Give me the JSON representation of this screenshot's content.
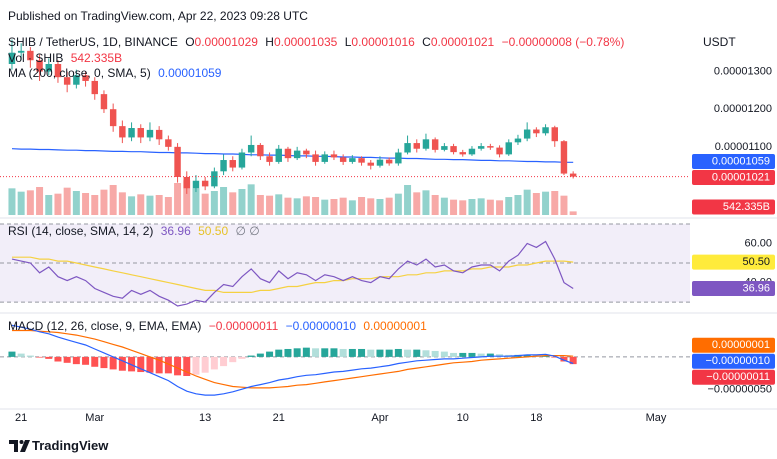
{
  "header": {
    "published": "Published on TradingView.com, Apr 22, 2023 09:28 UTC",
    "currency": "USDT",
    "symbol": "SHIB / TetherUS, 1D, BINANCE",
    "ohlc": [
      {
        "key": "O",
        "value": "0.00001029"
      },
      {
        "key": "H",
        "value": "0.00001035"
      },
      {
        "key": "L",
        "value": "0.00001016"
      },
      {
        "key": "C",
        "value": "0.00001021"
      }
    ],
    "change": "−0.00000008 (−0.78%)"
  },
  "footer": {
    "brand": "TradingView"
  },
  "xaxis": {
    "xlim": [
      -1.3,
      73.7
    ],
    "xticks": [
      {
        "value": 1,
        "label": "21"
      },
      {
        "value": 9,
        "label": "Mar"
      },
      {
        "value": 21,
        "label": "13"
      },
      {
        "value": 29,
        "label": "21"
      },
      {
        "value": 40,
        "label": "Apr"
      },
      {
        "value": 49,
        "label": "10"
      },
      {
        "value": 57,
        "label": "18"
      },
      {
        "value": 70,
        "label": "May"
      }
    ]
  },
  "chart_data": [
    {
      "type": "candlestick",
      "up_color": "#26a69a",
      "down_color": "#ef5350",
      "grid": false,
      "ylim": [
        9.19e-06,
        1.405e-05
      ],
      "yticks": [
        {
          "value": 1.3e-05,
          "label": "0.00001300"
        },
        {
          "value": 1.2e-05,
          "label": "0.00001200"
        },
        {
          "value": 1.1e-05,
          "label": "0.00001100"
        }
      ],
      "open": [
        1.32e-05,
        1.35e-05,
        1.355e-05,
        1.33e-05,
        1.3e-05,
        1.32e-05,
        1.285e-05,
        1.265e-05,
        1.29e-05,
        1.275e-05,
        1.24e-05,
        1.2e-05,
        1.155e-05,
        1.125e-05,
        1.15e-05,
        1.125e-05,
        1.145e-05,
        1.12e-05,
        1.1e-05,
        1.02e-05,
        9.9e-06,
        1.01e-05,
        9.95e-06,
        1.035e-05,
        1.065e-05,
        1.045e-05,
        1.085e-05,
        1.105e-05,
        1.075e-05,
        1.06e-05,
        1.095e-05,
        1.07e-05,
        1.09e-05,
        1.08e-05,
        1.06e-05,
        1.08e-05,
        1.072e-05,
        1.06e-05,
        1.07e-05,
        1.058e-05,
        1.05e-05,
        1.066e-05,
        1.056e-05,
        1.085e-05,
        1.11e-05,
        1.095e-05,
        1.12e-05,
        1.092e-05,
        1.102e-05,
        1.086e-05,
        1.08e-05,
        1.095e-05,
        1.102e-05,
        1.098e-05,
        1.08e-05,
        1.112e-05,
        1.122e-05,
        1.146e-05,
        1.136e-05,
        1.152e-05,
        1.115e-05,
        1.029e-05
      ],
      "high": [
        1.385e-05,
        1.375e-05,
        1.365e-05,
        1.345e-05,
        1.335e-05,
        1.33e-05,
        1.3e-05,
        1.305e-05,
        1.3e-05,
        1.285e-05,
        1.25e-05,
        1.215e-05,
        1.17e-05,
        1.165e-05,
        1.16e-05,
        1.165e-05,
        1.155e-05,
        1.13e-05,
        1.11e-05,
        1.035e-05,
        1.025e-05,
        1.02e-05,
        1.045e-05,
        1.08e-05,
        1.075e-05,
        1.095e-05,
        1.13e-05,
        1.11e-05,
        1.085e-05,
        1.105e-05,
        1.1e-05,
        1.1e-05,
        1.095e-05,
        1.09e-05,
        1.088e-05,
        1.09e-05,
        1.08e-05,
        1.078e-05,
        1.075e-05,
        1.065e-05,
        1.075e-05,
        1.072e-05,
        1.095e-05,
        1.13e-05,
        1.12e-05,
        1.135e-05,
        1.125e-05,
        1.11e-05,
        1.108e-05,
        1.092e-05,
        1.102e-05,
        1.11e-05,
        1.108e-05,
        1.104e-05,
        1.12e-05,
        1.132e-05,
        1.165e-05,
        1.152e-05,
        1.16e-05,
        1.156e-05,
        1.118e-05,
        1.035e-05
      ],
      "low": [
        1.305e-05,
        1.33e-05,
        1.31e-05,
        1.275e-05,
        1.29e-05,
        1.27e-05,
        1.245e-05,
        1.255e-05,
        1.26e-05,
        1.225e-05,
        1.19e-05,
        1.14e-05,
        1.11e-05,
        1.115e-05,
        1.11e-05,
        1.115e-05,
        1.105e-05,
        1.09e-05,
        1.005e-05,
        9.75e-06,
        9.8e-06,
        9.85e-06,
        9.9e-06,
        1.025e-05,
        1.035e-05,
        1.04e-05,
        1.075e-05,
        1.065e-05,
        1.05e-05,
        1.055e-05,
        1.06e-05,
        1.065e-05,
        1.07e-05,
        1.05e-05,
        1.055e-05,
        1.065e-05,
        1.052e-05,
        1.055e-05,
        1.05e-05,
        1.04e-05,
        1.045e-05,
        1.05e-05,
        1.05e-05,
        1.08e-05,
        1.085e-05,
        1.09e-05,
        1.085e-05,
        1.088e-05,
        1.08e-05,
        1.074e-05,
        1.076e-05,
        1.09e-05,
        1.092e-05,
        1.072e-05,
        1.076e-05,
        1.105e-05,
        1.115e-05,
        1.126e-05,
        1.13e-05,
        1.1e-05,
        1.025e-05,
        1.016e-05
      ],
      "close": [
        1.35e-05,
        1.355e-05,
        1.33e-05,
        1.3e-05,
        1.32e-05,
        1.285e-05,
        1.265e-05,
        1.29e-05,
        1.275e-05,
        1.24e-05,
        1.2e-05,
        1.155e-05,
        1.125e-05,
        1.15e-05,
        1.125e-05,
        1.145e-05,
        1.12e-05,
        1.1e-05,
        1.02e-05,
        9.9e-06,
        1.01e-05,
        9.95e-06,
        1.035e-05,
        1.065e-05,
        1.045e-05,
        1.085e-05,
        1.105e-05,
        1.075e-05,
        1.06e-05,
        1.095e-05,
        1.07e-05,
        1.09e-05,
        1.08e-05,
        1.06e-05,
        1.08e-05,
        1.072e-05,
        1.06e-05,
        1.07e-05,
        1.058e-05,
        1.05e-05,
        1.066e-05,
        1.056e-05,
        1.085e-05,
        1.11e-05,
        1.095e-05,
        1.12e-05,
        1.092e-05,
        1.102e-05,
        1.086e-05,
        1.08e-05,
        1.095e-05,
        1.102e-05,
        1.098e-05,
        1.08e-05,
        1.112e-05,
        1.122e-05,
        1.146e-05,
        1.136e-05,
        1.152e-05,
        1.115e-05,
        1.029e-05,
        1.021e-05
      ],
      "ma": {
        "name": "MA (200, close, 0, SMA, 5)",
        "color": "#2962ff",
        "values": [
          1.095e-05,
          1.094e-05,
          1.094e-05,
          1.093e-05,
          1.093e-05,
          1.092e-05,
          1.091e-05,
          1.091e-05,
          1.09e-05,
          1.09e-05,
          1.089e-05,
          1.088e-05,
          1.088e-05,
          1.087e-05,
          1.087e-05,
          1.086e-05,
          1.085e-05,
          1.085e-05,
          1.084e-05,
          1.084e-05,
          1.083e-05,
          1.082e-05,
          1.082e-05,
          1.081e-05,
          1.081e-05,
          1.08e-05,
          1.079e-05,
          1.079e-05,
          1.078e-05,
          1.078e-05,
          1.077e-05,
          1.076e-05,
          1.076e-05,
          1.075e-05,
          1.075e-05,
          1.074e-05,
          1.073e-05,
          1.073e-05,
          1.072e-05,
          1.072e-05,
          1.071e-05,
          1.07e-05,
          1.07e-05,
          1.069e-05,
          1.069e-05,
          1.068e-05,
          1.067e-05,
          1.067e-05,
          1.066e-05,
          1.066e-05,
          1.065e-05,
          1.064e-05,
          1.064e-05,
          1.063e-05,
          1.063e-05,
          1.062e-05,
          1.061e-05,
          1.061e-05,
          1.06e-05,
          1.06e-05,
          1.059e-05,
          1.059e-05
        ]
      },
      "volume": {
        "name": "Vol · SHIB",
        "up_color": "#92d2cc",
        "down_color": "#f7a9a7",
        "vlim": [
          0,
          6000
        ],
        "values": [
          4000,
          3500,
          3700,
          4200,
          3000,
          3200,
          4100,
          3600,
          3300,
          3000,
          3800,
          4500,
          3400,
          2800,
          3100,
          2900,
          3000,
          2700,
          4800,
          5200,
          4000,
          3200,
          3600,
          4200,
          3400,
          3900,
          4600,
          3000,
          2900,
          3100,
          2600,
          2500,
          2800,
          2700,
          2300,
          2400,
          2600,
          2200,
          2700,
          2500,
          2400,
          2600,
          3200,
          4500,
          3400,
          3700,
          3000,
          2600,
          2300,
          2200,
          2400,
          2500,
          2300,
          2200,
          2700,
          3000,
          3800,
          3300,
          3500,
          3600,
          2900,
          542.335
        ],
        "tag": {
          "value": 542.335,
          "label": "542.335B",
          "color": "#f23645",
          "text_color": "#ffffff"
        }
      },
      "tags": [
        {
          "value": 1.021e-05,
          "label": "0.00001021",
          "color": "#f23645",
          "text_color": "#ffffff",
          "price_line": true
        },
        {
          "value": 1.059e-05,
          "label": "0.00001059",
          "color": "#2962ff",
          "text_color": "#ffffff"
        }
      ]
    },
    {
      "type": "line",
      "title": "RSI (14, close, SMA, 14, 2)",
      "extra": "∅ ∅",
      "ylim": [
        27,
        71
      ],
      "yticks": [
        {
          "value": 60,
          "label": "60.00"
        },
        {
          "value": 40,
          "label": "40.00"
        }
      ],
      "hlines": [
        70,
        50,
        30
      ],
      "band_color": "#ede7f6",
      "rsi": {
        "color": "#7e57c2",
        "values": [
          52,
          51,
          50,
          45,
          48,
          43,
          41,
          43,
          41,
          37,
          35,
          33,
          32,
          36,
          34,
          36,
          33,
          31,
          28,
          29,
          31,
          30,
          35,
          39,
          38,
          43,
          47,
          42,
          40,
          46,
          42,
          45,
          44,
          41,
          44,
          43,
          41,
          43,
          41,
          40,
          43,
          42,
          47,
          51,
          49,
          52,
          48,
          49,
          46,
          45,
          48,
          49,
          49,
          46,
          51,
          54,
          60,
          58,
          61,
          52,
          40,
          36.96
        ]
      },
      "rsi_sma": {
        "color": "#f5d142",
        "values": [
          53,
          53,
          53,
          52,
          52,
          51,
          51,
          50,
          49,
          48,
          47,
          46,
          45,
          44,
          43,
          42,
          41,
          40,
          39,
          38,
          37,
          36,
          36,
          35,
          35,
          35,
          35,
          36,
          36,
          37,
          38,
          38,
          39,
          40,
          40,
          41,
          41,
          42,
          42,
          42,
          43,
          43,
          43,
          44,
          44,
          45,
          45,
          46,
          46,
          46,
          47,
          47,
          48,
          48,
          48,
          49,
          49,
          50,
          51,
          51,
          51,
          50.5
        ]
      },
      "tags": [
        {
          "value": 50.5,
          "label": "50.50",
          "color": "#ffeb3b",
          "text_color": "#131722"
        },
        {
          "value": 36.96,
          "label": "36.96",
          "color": "#7e57c2",
          "text_color": "#ffffff"
        }
      ]
    },
    {
      "type": "macd",
      "title": "MACD (12, 26, close, 9, EMA, EMA)",
      "ylim": [
        -7.3e-07,
        5.9e-07
      ],
      "yticks": [
        {
          "value": -5e-07,
          "label": "−0.00000050"
        }
      ],
      "hlines": [
        0
      ],
      "histogram": {
        "colors": [
          "#26a69a",
          "#b2dfdb",
          "#ff5252",
          "#ffcdd2"
        ],
        "values": [
          8e-08,
          5e-08,
          2e-08,
          -1e-08,
          -3e-08,
          -7e-08,
          -9e-08,
          -1.1e-07,
          -1.2e-07,
          -1.5e-07,
          -1.7e-07,
          -1.9e-07,
          -2.1e-07,
          -2.2e-07,
          -2.3e-07,
          -2.4e-07,
          -2.5e-07,
          -2.5e-07,
          -2.8e-07,
          -2.9e-07,
          -2.7e-07,
          -2.4e-07,
          -1.9e-07,
          -1.4e-07,
          -8e-08,
          -3e-08,
          2e-08,
          5e-08,
          8e-08,
          1.1e-07,
          1.2e-07,
          1.3e-07,
          1.4e-07,
          1.3e-07,
          1.3e-07,
          1.3e-07,
          1.2e-07,
          1.2e-07,
          1.2e-07,
          1.1e-07,
          1.1e-07,
          1.1e-07,
          1.2e-07,
          1.1e-07,
          1.1e-07,
          1e-07,
          9e-08,
          8e-08,
          6e-08,
          6e-08,
          6e-08,
          5e-08,
          5e-08,
          4e-08,
          3e-08,
          3e-08,
          3e-08,
          2e-08,
          2e-08,
          -1e-08,
          -7e-08,
          -1.1e-07
        ]
      },
      "macd": {
        "color": "#2962ff",
        "values": [
          4.8e-07,
          4.5e-07,
          4.2e-07,
          3.8e-07,
          3.5e-07,
          3e-07,
          2.6e-07,
          2.2e-07,
          1.8e-07,
          1.2e-07,
          6e-08,
          0,
          -6e-08,
          -1.2e-07,
          -1.8e-07,
          -2.4e-07,
          -3e-07,
          -3.6e-07,
          -4.5e-07,
          -5.2e-07,
          -5.6e-07,
          -5.8e-07,
          -5.8e-07,
          -5.6e-07,
          -5.3e-07,
          -4.9e-07,
          -4.5e-07,
          -4.2e-07,
          -3.9e-07,
          -3.5e-07,
          -3.3e-07,
          -3e-07,
          -2.8e-07,
          -2.7e-07,
          -2.5e-07,
          -2.3e-07,
          -2.2e-07,
          -2e-07,
          -1.8e-07,
          -1.7e-07,
          -1.5e-07,
          -1.3e-07,
          -1e-07,
          -8e-08,
          -6e-08,
          -5e-08,
          -4e-08,
          -3e-08,
          -3e-08,
          -2e-08,
          -1e-08,
          0,
          1e-08,
          1e-08,
          1e-08,
          2e-08,
          3e-08,
          3e-08,
          4e-08,
          1e-08,
          -5e-08,
          -1e-07
        ]
      },
      "signal": {
        "color": "#ff6d00",
        "values": [
          4e-07,
          4e-07,
          4e-07,
          3.9e-07,
          3.8e-07,
          3.7e-07,
          3.5e-07,
          3.3e-07,
          3e-07,
          2.7e-07,
          2.3e-07,
          1.9e-07,
          1.5e-07,
          1e-07,
          5e-08,
          0,
          -5e-08,
          -1.1e-07,
          -1.7e-07,
          -2.3e-07,
          -2.9e-07,
          -3.4e-07,
          -3.9e-07,
          -4.2e-07,
          -4.5e-07,
          -4.6e-07,
          -4.7e-07,
          -4.7e-07,
          -4.7e-07,
          -4.6e-07,
          -4.5e-07,
          -4.3e-07,
          -4.2e-07,
          -4e-07,
          -3.8e-07,
          -3.6e-07,
          -3.4e-07,
          -3.2e-07,
          -3e-07,
          -2.8e-07,
          -2.6e-07,
          -2.4e-07,
          -2.2e-07,
          -1.9e-07,
          -1.7e-07,
          -1.5e-07,
          -1.3e-07,
          -1.1e-07,
          -9e-08,
          -8e-08,
          -7e-08,
          -5e-08,
          -4e-08,
          -3e-08,
          -2e-08,
          -1e-08,
          0,
          1e-08,
          2e-08,
          2e-08,
          2e-08,
          1e-08
        ]
      },
      "tags": [
        {
          "value": 1e-08,
          "label": "0.00000001",
          "color": "#ff6d00",
          "text_color": "#ffffff"
        },
        {
          "value": -1e-07,
          "label": "−0.00000010",
          "color": "#2962ff",
          "text_color": "#ffffff"
        },
        {
          "value": -1.1e-07,
          "label": "−0.00000011",
          "color": "#f23645",
          "text_color": "#ffffff"
        }
      ]
    }
  ]
}
